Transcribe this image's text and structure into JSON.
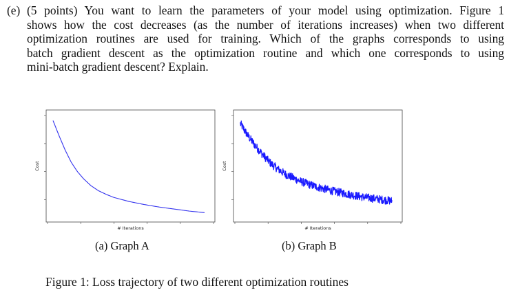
{
  "question": {
    "label": "(e)",
    "lines": [
      "(5 points) You want to learn the parameters of your model using optimization. Figure 1",
      "shows how the cost decreases (as the number of iterations increases) when two different",
      "optimization routines are used for training. Which of the graphs corresponds to using",
      "batch gradient descent as the optimization routine and which one corresponds to using",
      "mini-batch gradient descent? Explain."
    ]
  },
  "figure": {
    "caption": "Figure 1: Loss trajectory of two different optimization routines",
    "colors": {
      "line": "#3333ee",
      "axes_frame": "#444444"
    }
  },
  "chart_data": [
    {
      "type": "line",
      "title": "",
      "xlabel": "# Iterations",
      "ylabel": "Cost",
      "caption": "(a) Graph A",
      "grid": false,
      "legend": "none",
      "ticks": "unlabeled",
      "series": [
        {
          "x": [
            0,
            0.04,
            0.08,
            0.12,
            0.16,
            0.2,
            0.25,
            0.3,
            0.35,
            0.4,
            0.5,
            0.6,
            0.7,
            0.8,
            0.9,
            1.0
          ],
          "y": [
            0.95,
            0.8,
            0.66,
            0.54,
            0.45,
            0.38,
            0.31,
            0.26,
            0.225,
            0.195,
            0.155,
            0.125,
            0.1,
            0.08,
            0.06,
            0.045
          ]
        }
      ]
    },
    {
      "type": "line",
      "title": "",
      "xlabel": "# Iterations",
      "ylabel": "Cost",
      "caption": "(b) Graph B",
      "grid": false,
      "legend": "none",
      "ticks": "unlabeled",
      "series": [
        {
          "x": [
            0,
            0.05,
            0.1,
            0.15,
            0.2,
            0.25,
            0.3,
            0.4,
            0.5,
            0.6,
            0.7,
            0.8,
            0.9,
            1.0
          ],
          "y": [
            0.92,
            0.8,
            0.7,
            0.61,
            0.53,
            0.47,
            0.42,
            0.35,
            0.3,
            0.26,
            0.23,
            0.2,
            0.18,
            0.16
          ],
          "noise_amplitude": 0.04
        }
      ]
    }
  ]
}
